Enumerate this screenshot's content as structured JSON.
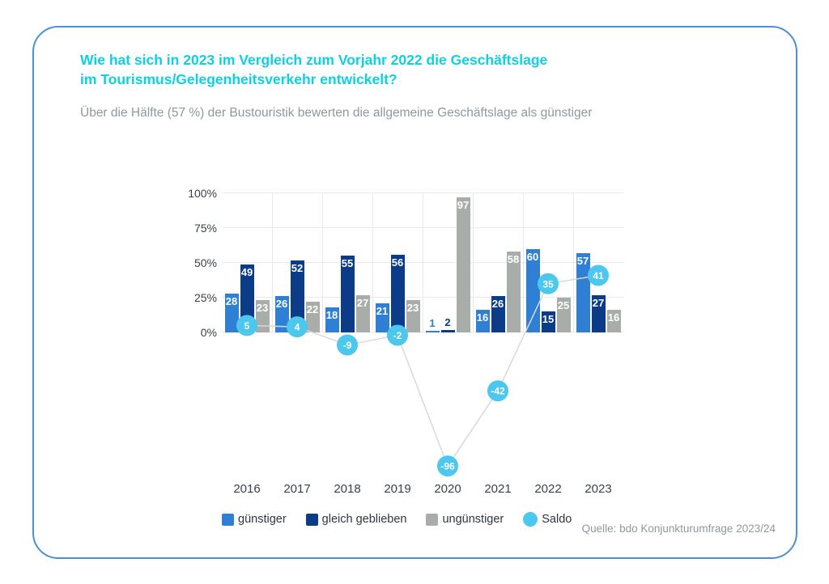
{
  "card": {
    "title_line1": "Wie hat sich in 2023 im Vergleich zum Vorjahr 2022 die Geschäftslage",
    "title_line2": "im Tourismus/Gelegenheitsverkehr entwickelt?",
    "subtitle": "Über die Hälfte (57 %) der Bustouristik bewerten die allgemeine Geschäftslage als günstiger",
    "source": "Quelle: bdo Konjunkturumfrage 2023/24"
  },
  "colors": {
    "title": "#0fd0e0",
    "border": "#4a90d8",
    "guenstiger": "#2f80d4",
    "gleich_geblieben": "#0c3b87",
    "unguenstiger": "#a9ada9",
    "saldo": "#4cc7ee",
    "grid": "#e8e9ea",
    "saldo_line": "#d7d9da",
    "axis_text": "#3a4148",
    "muted_text": "#8e989f"
  },
  "chart_data": {
    "type": "bar",
    "categories": [
      "2016",
      "2017",
      "2018",
      "2019",
      "2020",
      "2021",
      "2022",
      "2023"
    ],
    "series": [
      {
        "name": "günstiger",
        "type": "bar",
        "color_key": "guenstiger",
        "values": [
          28,
          26,
          18,
          21,
          1,
          16,
          60,
          57
        ]
      },
      {
        "name": "gleich geblieben",
        "type": "bar",
        "color_key": "gleich_geblieben",
        "values": [
          49,
          52,
          55,
          56,
          2,
          26,
          15,
          27
        ]
      },
      {
        "name": "ungünstiger",
        "type": "bar",
        "color_key": "unguenstiger",
        "values": [
          23,
          22,
          27,
          23,
          97,
          58,
          25,
          16
        ]
      },
      {
        "name": "Saldo",
        "type": "line",
        "color_key": "saldo",
        "values": [
          5,
          4,
          -9,
          -2,
          -96,
          -42,
          35,
          41
        ]
      }
    ],
    "y_ticks": [
      "0%",
      "25%",
      "50%",
      "75%",
      "100%"
    ],
    "ylim": [
      0,
      100
    ],
    "grid": true,
    "legend_position": "bottom"
  }
}
